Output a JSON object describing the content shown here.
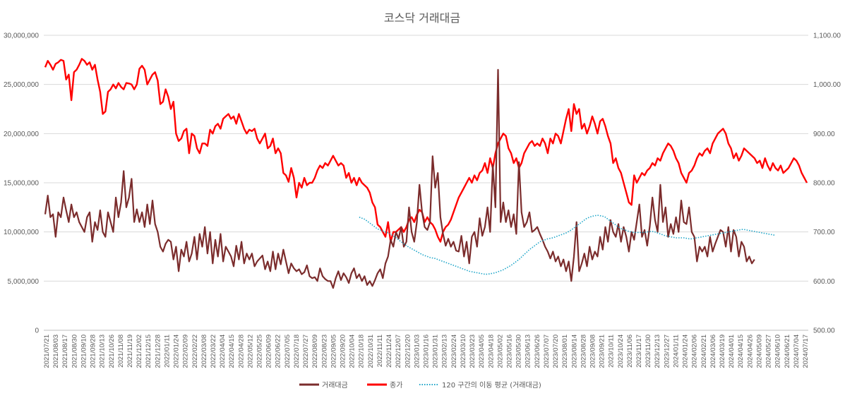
{
  "chart_data": {
    "type": "line",
    "title": "코스닥 거래대금",
    "y_left": {
      "min": 0,
      "max": 30000000,
      "step": 5000000,
      "tick_labels": [
        "0",
        "5,000,000",
        "10,000,000",
        "15,000,000",
        "20,000,000",
        "25,000,000",
        "30,000,000"
      ]
    },
    "y_right": {
      "min": 500,
      "max": 1100,
      "step": 100,
      "tick_labels": [
        "500.00",
        "600.00",
        "700.00",
        "800.00",
        "900.00",
        "1,000.00",
        "1,100.00"
      ]
    },
    "grid": true,
    "legend_position": "bottom",
    "x_tick_labels": [
      "2021/07/21",
      "2021/08/03",
      "2021/08/17",
      "2021/08/30",
      "2021/09/10",
      "2021/09/28",
      "2021/10/13",
      "2021/10/26",
      "2021/11/08",
      "2021/11/19",
      "2021/12/02",
      "2021/12/15",
      "2021/12/28",
      "2022/01/11",
      "2022/01/24",
      "2022/02/09",
      "2022/02/22",
      "2022/03/08",
      "2022/03/22",
      "2022/04/04",
      "2022/04/15",
      "2022/04/28",
      "2022/05/12",
      "2022/05/25",
      "2022/06/09",
      "2022/06/22",
      "2022/07/05",
      "2022/07/18",
      "2022/07/27",
      "2022/08/09",
      "2022/08/23",
      "2022/09/05",
      "2022/09/20",
      "2022/10/04",
      "2022/10/18",
      "2022/10/31",
      "2022/11/11",
      "2022/11/24",
      "2022/12/07",
      "2022/12/20",
      "2023/01/03",
      "2023/01/16",
      "2023/01/31",
      "2023/02/13",
      "2023/02/24",
      "2023/03/10",
      "2023/03/23",
      "2023/04/05",
      "2023/04/18",
      "2023/05/02",
      "2023/05/16",
      "2023/05/30",
      "2023/06/13",
      "2023/06/26",
      "2023/07/07",
      "2023/07/20",
      "2023/08/01",
      "2023/08/14",
      "2023/08/28",
      "2023/09/08",
      "2023/09/21",
      "2023/10/11",
      "2023/10/24",
      "2023/11/06",
      "2023/11/17",
      "2023/11/30",
      "2023/12/13",
      "2023/12/27",
      "2024/01/11",
      "2024/01/24",
      "2024/02/06",
      "2024/02/21",
      "2024/03/06",
      "2024/03/19",
      "2024/04/01",
      "2024/04/15",
      "2024/04/26",
      "2024/05/09",
      "2024/05/27",
      "2024/06/10",
      "2024/06/21",
      "2024/07/04",
      "2024/07/17"
    ],
    "series": [
      {
        "name": "거래대금",
        "axis": "left",
        "color": "#7b2c2c",
        "style": "solid",
        "values": [
          11800000,
          13700000,
          11500000,
          11800000,
          9500000,
          12000000,
          11500000,
          13500000,
          12200000,
          11000000,
          12800000,
          11500000,
          12000000,
          11000000,
          10500000,
          10000000,
          11500000,
          12000000,
          9000000,
          11000000,
          10200000,
          12200000,
          10000000,
          9500000,
          12000000,
          11000000,
          10000000,
          13500000,
          11500000,
          13000000,
          16200000,
          12500000,
          13500000,
          15400000,
          11000000,
          12300000,
          11000000,
          12000000,
          10500000,
          12800000,
          10800000,
          13200000,
          10800000,
          10000000,
          8500000,
          8000000,
          8800000,
          9200000,
          9000000,
          7200000,
          8500000,
          6000000,
          8200000,
          7500000,
          9000000,
          7000000,
          7800000,
          9500000,
          7200000,
          9800000,
          8500000,
          10500000,
          7800000,
          10000000,
          6800000,
          9200000,
          7500000,
          9800000,
          7000000,
          8500000,
          8000000,
          7500000,
          6500000,
          8600000,
          7200000,
          9000000,
          6800000,
          7800000,
          7200000,
          7800000,
          6500000,
          7000000,
          7300000,
          7600000,
          6200000,
          7000000,
          6000000,
          8000000,
          6200000,
          7800000,
          6700000,
          8200000,
          7000000,
          5800000,
          6800000,
          6300000,
          6000000,
          6200000,
          5700000,
          5900000,
          6600000,
          5500000,
          5300000,
          5400000,
          5000000,
          6300000,
          5500000,
          5200000,
          5000000,
          5000000,
          4300000,
          5300000,
          6000000,
          5100000,
          5800000,
          5400000,
          4800000,
          5800000,
          6300000,
          5300000,
          5700000,
          5000000,
          5500000,
          4600000,
          5000000,
          4500000,
          5100000,
          5800000,
          6200000,
          5300000,
          6800000,
          7500000,
          9200000,
          8500000,
          10000000,
          9300000,
          10500000,
          8500000,
          9000000,
          12500000,
          10000000,
          9000000,
          11000000,
          14800000,
          12000000,
          10500000,
          10200000,
          11000000,
          17700000,
          14500000,
          16000000,
          11500000,
          9800000,
          8600000,
          9300000,
          8500000,
          9000000,
          8100000,
          8000000,
          9600000,
          7500000,
          9000000,
          6800000,
          9500000,
          10000000,
          8500000,
          11400000,
          9600000,
          10500000,
          12500000,
          10000000,
          16800000,
          12500000,
          26500000,
          11000000,
          13000000,
          11000000,
          12200000,
          10500000,
          11800000,
          9800000,
          17100000,
          12000000,
          10500000,
          11000000,
          12000000,
          10000000,
          10200000,
          10500000,
          9800000,
          9200000,
          8500000,
          8000000,
          7300000,
          8000000,
          7000000,
          7500000,
          6500000,
          7200000,
          6000000,
          7000000,
          5000000,
          7500000,
          11000000,
          6000000,
          6800000,
          7800000,
          6500000,
          8500000,
          7200000,
          8000000,
          7500000,
          9500000,
          8200000,
          10500000,
          9000000,
          11200000,
          10000000,
          9500000,
          10800000,
          9000000,
          10500000,
          9500000,
          8000000,
          10000000,
          9200000,
          11000000,
          12800000,
          9500000,
          10200000,
          8600000,
          10600000,
          13500000,
          11200000,
          10000000,
          14800000,
          11000000,
          12500000,
          9500000,
          10800000,
          9800000,
          11500000,
          10000000,
          13200000,
          11000000,
          10800000,
          12500000,
          10000000,
          9500000,
          7000000,
          8500000,
          8000000,
          8500000,
          7500000,
          9500000,
          8000000,
          8800000,
          9500000,
          10200000,
          10000000,
          8500000,
          10500000,
          8000000,
          10200000,
          9500000,
          7500000,
          9000000,
          8500000,
          7000000,
          7500000,
          6800000,
          7200000
        ]
      },
      {
        "name": "종가",
        "axis": "right",
        "color": "#ff0000",
        "style": "solid",
        "values": [
          1035,
          1048,
          1040,
          1030,
          1042,
          1045,
          1050,
          1048,
          1010,
          1020,
          968,
          1025,
          1030,
          1040,
          1052,
          1048,
          1040,
          1045,
          1030,
          1040,
          1010,
          985,
          940,
          945,
          985,
          990,
          1000,
          992,
          1003,
          995,
          990,
          1003,
          1002,
          1000,
          990,
          1000,
          1032,
          1038,
          1030,
          1000,
          1010,
          1020,
          1025,
          1008,
          960,
          965,
          990,
          975,
          950,
          965,
          900,
          885,
          890,
          905,
          910,
          860,
          900,
          895,
          870,
          860,
          880,
          880,
          875,
          908,
          900,
          915,
          920,
          910,
          930,
          935,
          940,
          930,
          935,
          920,
          940,
          925,
          910,
          900,
          908,
          905,
          910,
          890,
          880,
          890,
          900,
          870,
          875,
          890,
          860,
          870,
          860,
          820,
          815,
          802,
          830,
          810,
          770,
          800,
          790,
          810,
          795,
          800,
          800,
          810,
          825,
          835,
          830,
          840,
          835,
          845,
          855,
          845,
          835,
          840,
          835,
          810,
          820,
          800,
          810,
          795,
          810,
          800,
          795,
          790,
          780,
          760,
          750,
          715,
          710,
          700,
          690,
          720,
          680,
          700,
          700,
          705,
          710,
          700,
          710,
          725,
          730,
          720,
          735,
          745,
          740,
          720,
          730,
          720,
          715,
          705,
          690,
          680,
          700,
          710,
          715,
          725,
          740,
          755,
          770,
          780,
          790,
          800,
          810,
          800,
          815,
          805,
          820,
          825,
          840,
          820,
          850,
          830,
          860,
          880,
          890,
          900,
          895,
          870,
          860,
          840,
          850,
          830,
          840,
          860,
          870,
          880,
          885,
          875,
          880,
          875,
          890,
          880,
          860,
          890,
          880,
          900,
          895,
          880,
          905,
          930,
          950,
          905,
          960,
          940,
          950,
          910,
          920,
          900,
          915,
          935,
          920,
          900,
          925,
          930,
          915,
          895,
          880,
          840,
          850,
          830,
          820,
          800,
          780,
          760,
          755,
          815,
          800,
          810,
          820,
          815,
          825,
          830,
          840,
          835,
          850,
          845,
          860,
          870,
          880,
          875,
          865,
          850,
          840,
          820,
          810,
          800,
          820,
          825,
          835,
          850,
          860,
          855,
          865,
          870,
          860,
          880,
          890,
          900,
          905,
          910,
          900,
          880,
          870,
          850,
          860,
          845,
          855,
          870,
          865,
          860,
          855,
          850,
          840,
          845,
          830,
          850,
          835,
          825,
          840,
          830,
          825,
          835,
          820,
          825,
          830,
          840,
          850,
          845,
          835,
          820,
          810,
          800
        ]
      },
      {
        "name": "120 구간의 이동 평균 (거래대금)",
        "axis": "left",
        "color": "#1fa6c9",
        "style": "dotted",
        "start_index": 120,
        "values": [
          11500000,
          11400000,
          11300000,
          11100000,
          10900000,
          10700000,
          10500000,
          10300000,
          10200000,
          10100000,
          10000000,
          9900000,
          9800000,
          9600000,
          9400000,
          9200000,
          9000000,
          8800000,
          8600000,
          8450000,
          8300000,
          8150000,
          8000000,
          7850000,
          7700000,
          7600000,
          7500000,
          7400000,
          7350000,
          7300000,
          7200000,
          7100000,
          7000000,
          6900000,
          6800000,
          6700000,
          6600000,
          6500000,
          6400000,
          6300000,
          6200000,
          6100000,
          6000000,
          5950000,
          5900000,
          5850000,
          5800000,
          5750000,
          5700000,
          5700000,
          5750000,
          5800000,
          5850000,
          5950000,
          6050000,
          6150000,
          6300000,
          6450000,
          6600000,
          6800000,
          7000000,
          7200000,
          7450000,
          7700000,
          7950000,
          8200000,
          8400000,
          8600000,
          8800000,
          9000000,
          9100000,
          9200000,
          9300000,
          9350000,
          9400000,
          9500000,
          9600000,
          9700000,
          9800000,
          9900000,
          10050000,
          10200000,
          10400000,
          10600000,
          10800000,
          11000000,
          11200000,
          11400000,
          11500000,
          11600000,
          11650000,
          11700000,
          11650000,
          11600000,
          11500000,
          11300000,
          11100000,
          10900000,
          10700000,
          10500000,
          10350000,
          10250000,
          10150000,
          10050000,
          10000000,
          9950000,
          9950000,
          9950000,
          9950000,
          9950000,
          10000000,
          10050000,
          10050000,
          10000000,
          9900000,
          9800000,
          9700000,
          9600000,
          9550000,
          9500000,
          9450000,
          9400000,
          9400000,
          9400000,
          9400000,
          9350000,
          9300000,
          9300000,
          9350000,
          9400000,
          9450000,
          9500000,
          9550000,
          9600000,
          9650000,
          9700000,
          9750000,
          9800000,
          9850000,
          9900000,
          9950000,
          10000000,
          10050000,
          10100000,
          10150000,
          10200000,
          10250000,
          10250000,
          10200000,
          10150000,
          10100000,
          10050000,
          10000000,
          9950000,
          9900000,
          9850000,
          9800000,
          9750000,
          9700000,
          9650000
        ]
      }
    ]
  }
}
